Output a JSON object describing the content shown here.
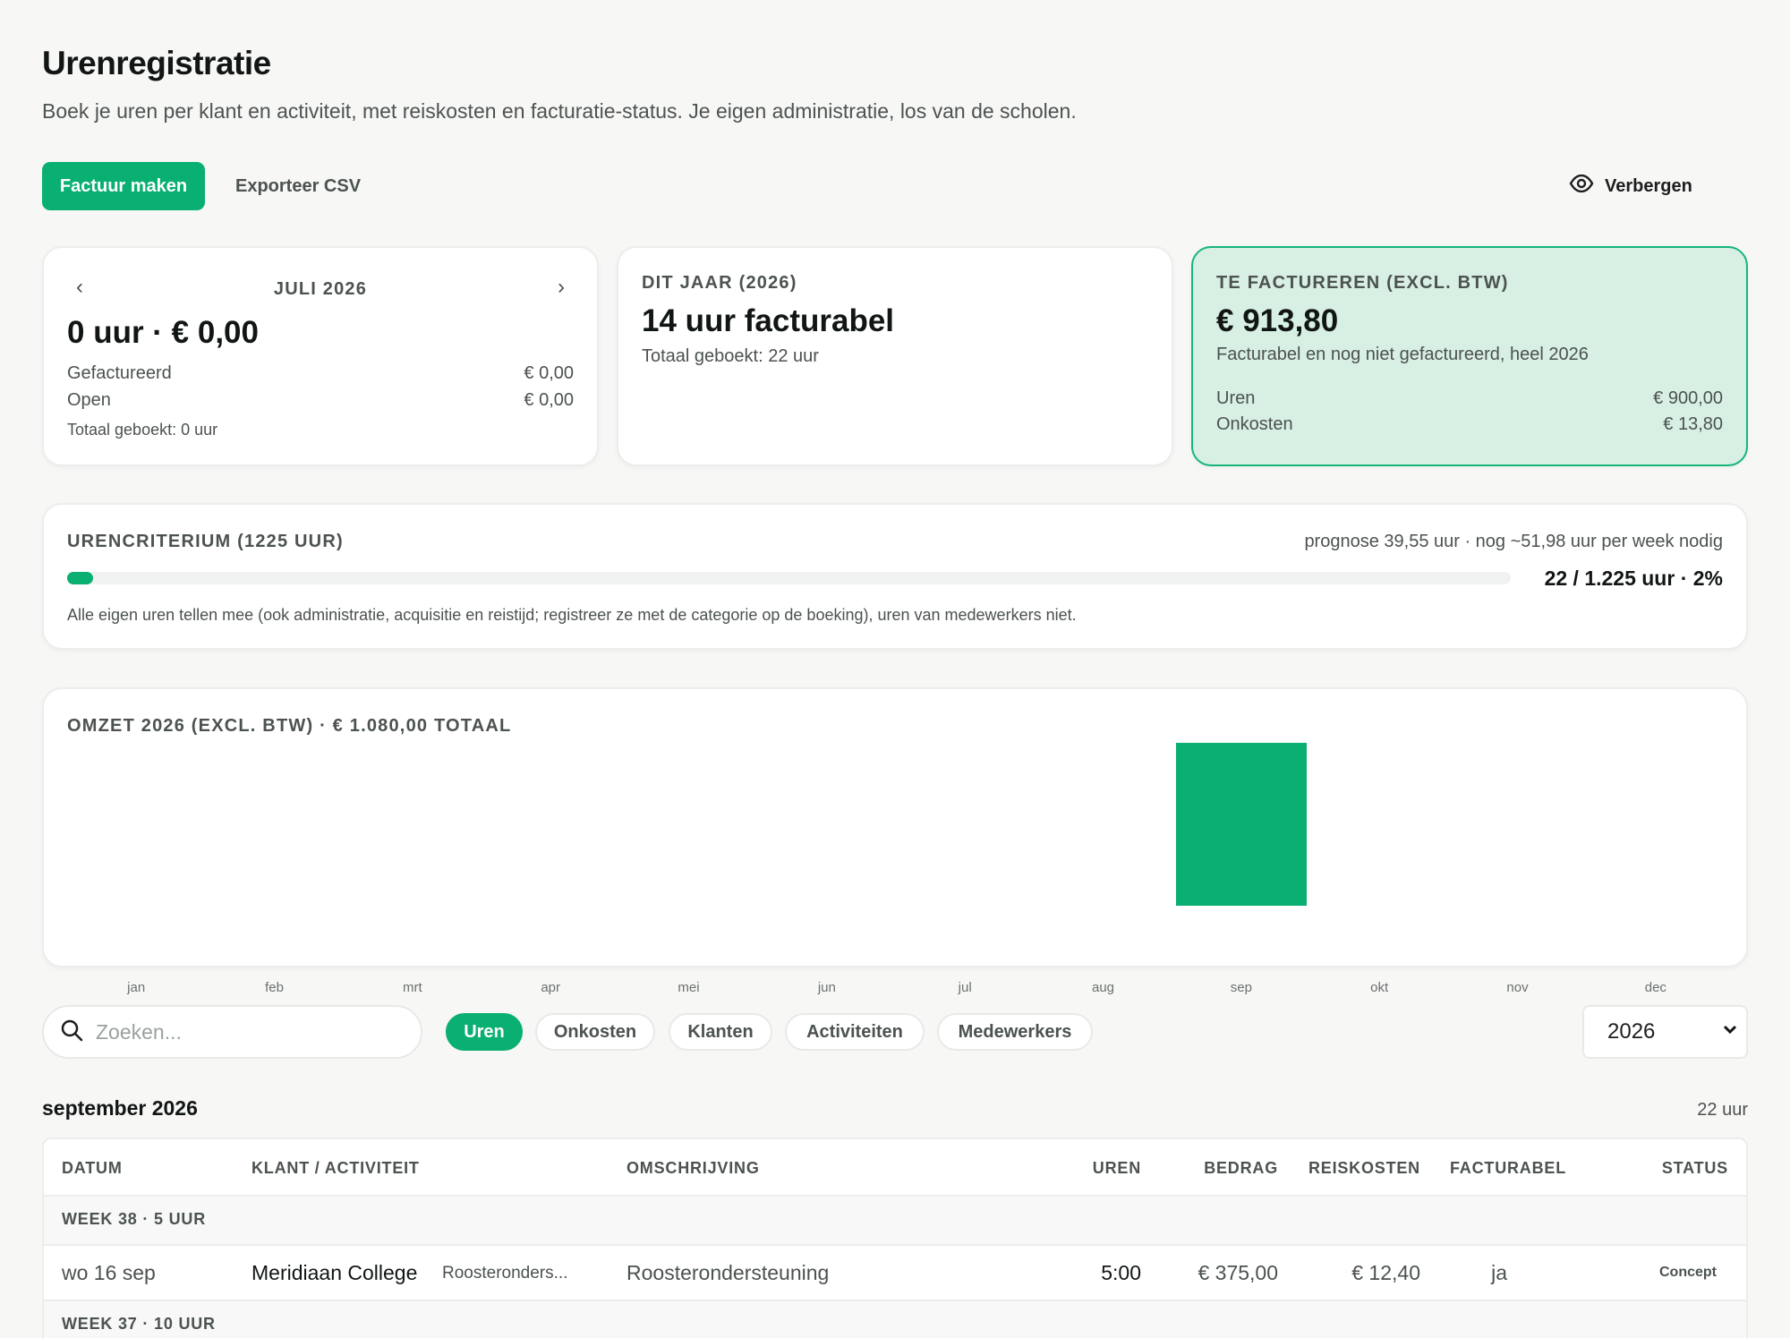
{
  "header": {
    "title": "Urenregistratie",
    "subtitle": "Boek je uren per klant en activiteit, met reiskosten en facturatie-status. Je eigen administratie, los van de scholen."
  },
  "actions": {
    "primary_label": "Factuur maken",
    "export_label": "Exporteer CSV",
    "hide_label": "Verbergen"
  },
  "month_card": {
    "prev": "‹",
    "next": "›",
    "month": "JULI 2026",
    "headline": "0 uur · € 0,00",
    "invoiced_label": "Gefactureerd",
    "invoiced_value": "€ 0,00",
    "open_label": "Open",
    "open_value": "€ 0,00",
    "total": "Totaal geboekt: 0 uur"
  },
  "year_card": {
    "label": "DIT JAAR (2026)",
    "headline": "14 uur facturabel",
    "total": "Totaal geboekt: 22 uur"
  },
  "invoice_card": {
    "label": "TE FACTUREREN (EXCL. BTW)",
    "amount": "€ 913,80",
    "note": "Facturabel en nog niet gefactureerd, heel 2026",
    "hours_label": "Uren",
    "hours_value": "€ 900,00",
    "costs_label": "Onkosten",
    "costs_value": "€ 13,80"
  },
  "criterion": {
    "label": "URENCRITERIUM (1225 UUR)",
    "forecast": "prognose 39,55 uur · nog ~51,98 uur per week nodig",
    "summary": "22 / 1.225 uur · 2%",
    "progress": 0.018,
    "note": "Alle eigen uren tellen mee (ook administratie, acquisitie en reistijd; registreer ze met de categorie op de boeking), uren van medewerkers niet."
  },
  "chart_data": {
    "type": "bar",
    "title": "OMZET 2026 (EXCL. BTW) · € 1.080,00 TOTAAL",
    "categories": [
      "jan",
      "feb",
      "mrt",
      "apr",
      "mei",
      "jun",
      "jul",
      "aug",
      "sep",
      "okt",
      "nov",
      "dec"
    ],
    "values": [
      0,
      0,
      0,
      0,
      0,
      0,
      0,
      0,
      1080,
      0,
      0,
      0
    ],
    "ylim": [
      0,
      1080
    ],
    "grid": false,
    "color": "#0aaf72"
  },
  "filters": {
    "search_placeholder": "Zoeken...",
    "tabs": [
      "Uren",
      "Onkosten",
      "Klanten",
      "Activiteiten",
      "Medewerkers"
    ],
    "active_tab": "Uren",
    "year": "2026"
  },
  "table": {
    "section_title": "september 2026",
    "section_total": "22 uur",
    "columns": [
      "DATUM",
      "KLANT / ACTIVITEIT",
      "OMSCHRIJVING",
      "UREN",
      "BEDRAG",
      "REISKOSTEN",
      "FACTURABEL",
      "STATUS"
    ],
    "week1": "WEEK 38 · 5 UUR",
    "row1": {
      "date": "wo 16 sep",
      "client": "Meridiaan College",
      "activity": "Roosteronders...",
      "description": "Roosterondersteuning",
      "hours": "5:00",
      "amount": "€ 375,00",
      "travel": "€ 12,40",
      "billable": "ja",
      "status": "Concept"
    },
    "week2": "WEEK 37 · 10 UUR"
  },
  "colors": {
    "accent": "#0aaf72",
    "accent_light": "#d8efe4"
  }
}
